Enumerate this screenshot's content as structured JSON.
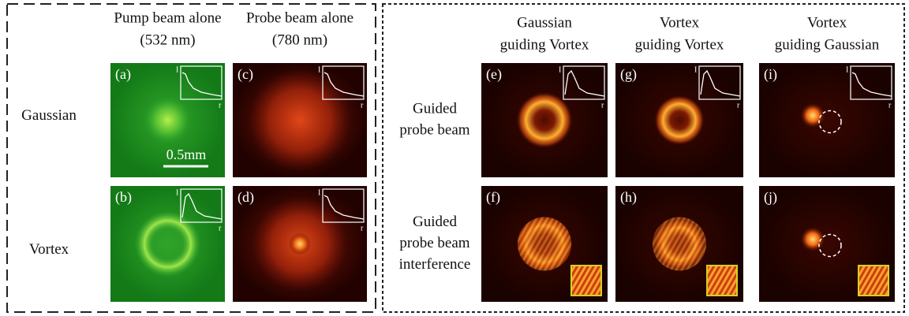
{
  "left": {
    "columns": [
      {
        "line1": "Pump beam alone",
        "line2": "(532 nm)"
      },
      {
        "line1": "Probe beam alone",
        "line2": "(780 nm)"
      }
    ],
    "rows": [
      "Gaussian",
      "Vortex"
    ],
    "panels": [
      "(a)",
      "(b)",
      "(c)",
      "(d)"
    ],
    "scale_bar": "0.5mm"
  },
  "right": {
    "columns": [
      {
        "line1": "Gaussian",
        "line2": "guiding Vortex"
      },
      {
        "line1": "Vortex",
        "line2": "guiding Vortex"
      },
      {
        "line1": "Vortex",
        "line2": "guiding Gaussian"
      }
    ],
    "rows": [
      [
        "Guided",
        "probe beam"
      ],
      [
        "Guided",
        "probe beam",
        "interference"
      ]
    ],
    "panels": [
      "(e)",
      "(f)",
      "(g)",
      "(h)",
      "(i)",
      "(j)"
    ]
  },
  "inset": {
    "y_label": "I",
    "x_label": "r"
  }
}
